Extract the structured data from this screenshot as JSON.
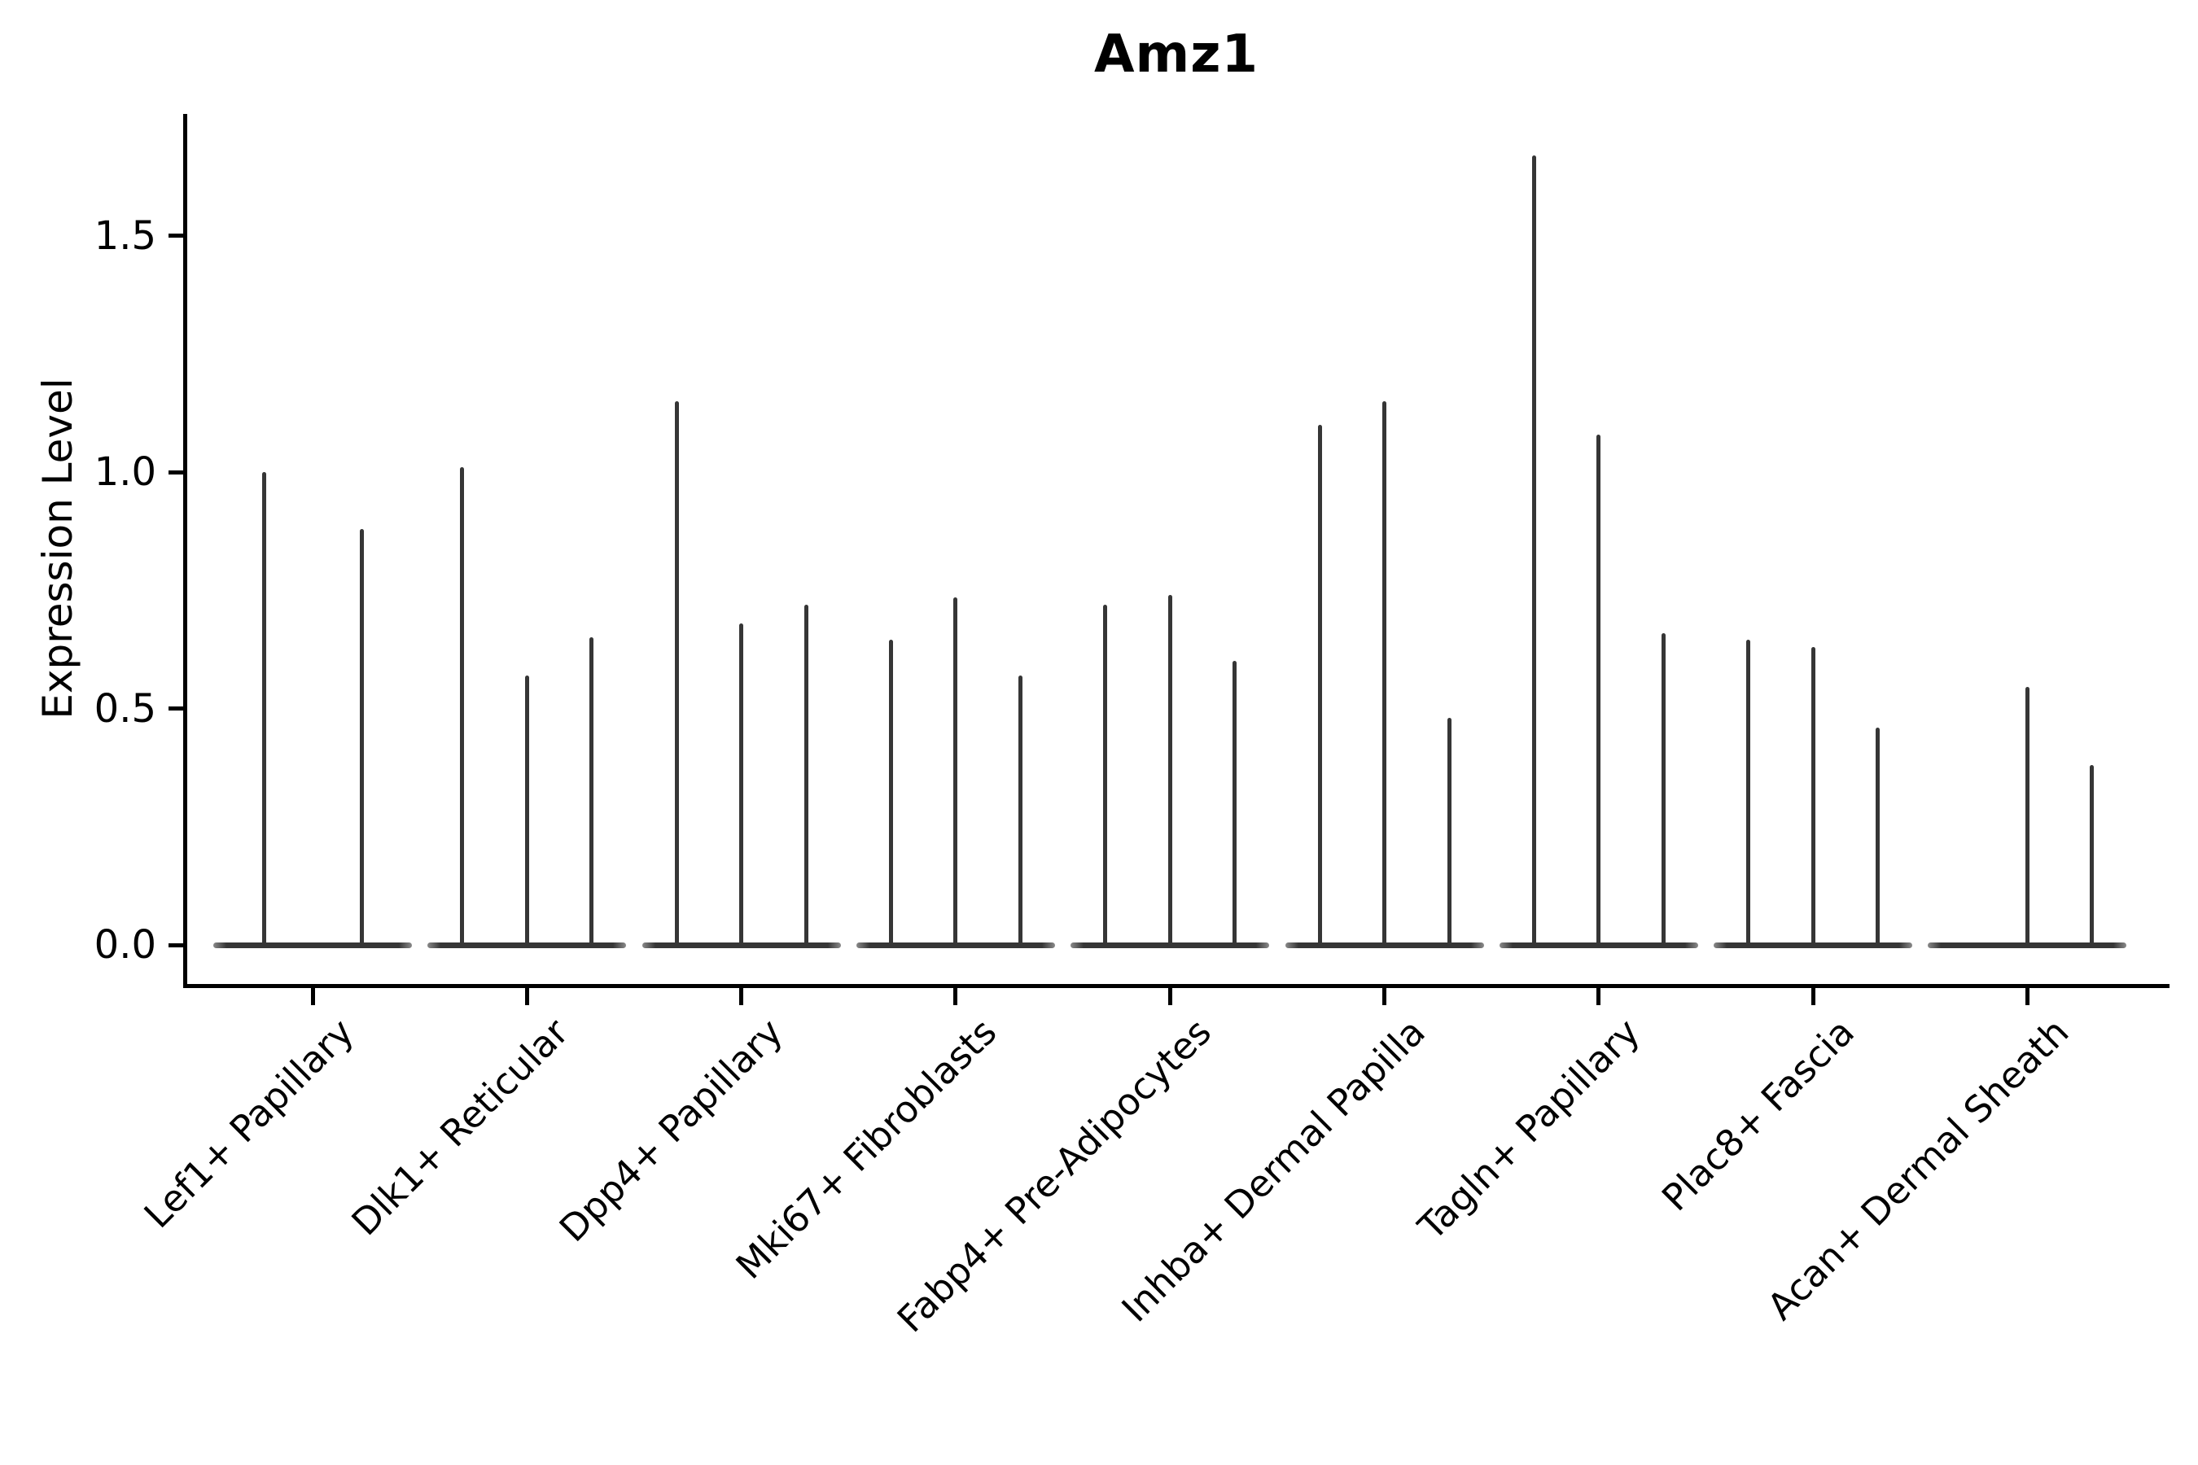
{
  "figure": {
    "background": "#ffffff",
    "accent_color": "#363636",
    "axis_color": "#000000"
  },
  "chart_data": {
    "type": "violin",
    "title": "Amz1",
    "xlabel": "",
    "ylabel": "Expression Level",
    "ylim": [
      -0.08,
      1.76
    ],
    "yticks": [
      0.0,
      0.5,
      1.0,
      1.5
    ],
    "ytick_labels": [
      "0.0",
      "0.5",
      "1.0",
      "1.5"
    ],
    "grid": false,
    "legend": false,
    "violin_color": "#363636",
    "categories": [
      "Lef1+ Papillary",
      "Dlk1+ Reticular",
      "Dpp4+ Papillary",
      "Mki67+ Fibroblasts",
      "Fabp4+ Pre-Adipocytes",
      "Inhba+ Dermal Papilla",
      "Tagln+ Papillary",
      "Plac8+ Fascia",
      "Acan+ Dermal Sheath"
    ],
    "series": [
      {
        "category": "Lef1+ Papillary",
        "violin_max": [
          1.0,
          0.88
        ]
      },
      {
        "category": "Dlk1+ Reticular",
        "violin_max": [
          1.01,
          0.57,
          0.65
        ]
      },
      {
        "category": "Dpp4+ Papillary",
        "violin_max": [
          1.15,
          0.68,
          0.72
        ]
      },
      {
        "category": "Mki67+ Fibroblasts",
        "violin_max": [
          0.645,
          0.735,
          0.57
        ]
      },
      {
        "category": "Fabp4+ Pre-Adipocytes",
        "violin_max": [
          0.72,
          0.74,
          0.6
        ]
      },
      {
        "category": "Inhba+ Dermal Papilla",
        "violin_max": [
          1.1,
          1.15,
          0.48
        ]
      },
      {
        "category": "Tagln+ Papillary",
        "violin_max": [
          1.67,
          1.08,
          0.66
        ]
      },
      {
        "category": "Plac8+ Fascia",
        "violin_max": [
          0.645,
          0.63,
          0.46
        ]
      },
      {
        "category": "Acan+ Dermal Sheath",
        "violin_max": [
          0.0,
          0.545,
          0.38
        ]
      }
    ],
    "note": "Each violin is needle-thin: a wide flat base at expression 0 and a thin spike up to violin_max; a violin_max of 0 means a flat base with no spike."
  }
}
